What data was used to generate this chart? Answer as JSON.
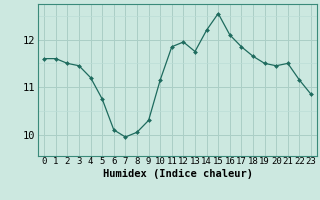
{
  "x": [
    0,
    1,
    2,
    3,
    4,
    5,
    6,
    7,
    8,
    9,
    10,
    11,
    12,
    13,
    14,
    15,
    16,
    17,
    18,
    19,
    20,
    21,
    22,
    23
  ],
  "y": [
    11.6,
    11.6,
    11.5,
    11.45,
    11.2,
    10.75,
    10.1,
    9.95,
    10.05,
    10.3,
    11.15,
    11.85,
    11.95,
    11.75,
    12.2,
    12.55,
    12.1,
    11.85,
    11.65,
    11.5,
    11.45,
    11.5,
    11.15,
    10.85
  ],
  "xlabel": "Humidex (Indice chaleur)",
  "bg_color": "#cce8e0",
  "grid_color_major": "#aacec6",
  "grid_color_minor": "#bbddd6",
  "line_color": "#1e6b5e",
  "marker_color": "#1e6b5e",
  "yticks": [
    10,
    11,
    12
  ],
  "ylim": [
    9.55,
    12.75
  ],
  "xlim": [
    -0.5,
    23.5
  ],
  "xtick_labels": [
    "0",
    "1",
    "2",
    "3",
    "4",
    "5",
    "6",
    "7",
    "8",
    "9",
    "10",
    "11",
    "12",
    "13",
    "14",
    "15",
    "16",
    "17",
    "18",
    "19",
    "20",
    "21",
    "22",
    "23"
  ],
  "xlabel_fontsize": 7.5,
  "tick_fontsize": 6.5,
  "ytick_fontsize": 7.5
}
